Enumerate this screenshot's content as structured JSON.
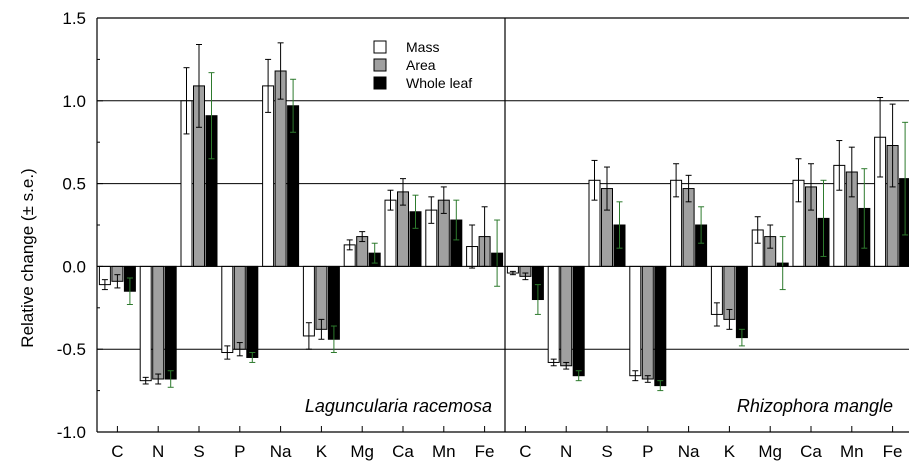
{
  "chart_data": {
    "type": "bar",
    "ylabel": "Relative change (± s.e.)",
    "ylim": [
      -1.0,
      1.5
    ],
    "yticks": [
      "-1.0",
      "-0.5",
      "0.0",
      "0.5",
      "1.0",
      "1.5"
    ],
    "ytick_values": [
      -1.0,
      -0.5,
      0.0,
      0.5,
      1.0,
      1.5
    ],
    "reference_lines": [
      -0.5,
      0.5,
      1.0
    ],
    "legend_position": "top-center",
    "legend": [
      {
        "name": "Mass",
        "color": "#ffffff"
      },
      {
        "name": "Area",
        "color": "#a0a0a0"
      },
      {
        "name": "Whole leaf",
        "color": "#000000"
      }
    ],
    "error_bar_colors": {
      "Mass": "#000000",
      "Area": "#000000",
      "Whole leaf": "#2d7a2d"
    },
    "panels": [
      {
        "species": "Laguncularia racemosa",
        "categories": [
          "C",
          "N",
          "S",
          "P",
          "Na",
          "K",
          "Mg",
          "Ca",
          "Mn",
          "Fe"
        ],
        "series": [
          {
            "name": "Mass",
            "values": [
              -0.11,
              -0.69,
              1.0,
              -0.52,
              1.09,
              -0.42,
              0.13,
              0.4,
              0.34,
              0.12
            ],
            "errors": [
              0.03,
              0.02,
              0.2,
              0.04,
              0.16,
              0.08,
              0.03,
              0.06,
              0.08,
              0.13
            ]
          },
          {
            "name": "Area",
            "values": [
              -0.09,
              -0.68,
              1.09,
              -0.5,
              1.18,
              -0.38,
              0.18,
              0.45,
              0.4,
              0.18
            ],
            "errors": [
              0.04,
              0.03,
              0.25,
              0.04,
              0.17,
              0.06,
              0.03,
              0.08,
              0.08,
              0.18
            ]
          },
          {
            "name": "Whole leaf",
            "values": [
              -0.15,
              -0.68,
              0.91,
              -0.55,
              0.97,
              -0.44,
              0.08,
              0.33,
              0.28,
              0.08
            ],
            "errors": [
              0.08,
              0.05,
              0.26,
              0.03,
              0.16,
              0.08,
              0.06,
              0.1,
              0.12,
              0.2
            ]
          }
        ]
      },
      {
        "species": "Rhizophora mangle",
        "categories": [
          "C",
          "N",
          "S",
          "P",
          "Na",
          "K",
          "Mg",
          "Ca",
          "Mn",
          "Fe"
        ],
        "series": [
          {
            "name": "Mass",
            "values": [
              -0.04,
              -0.58,
              0.52,
              -0.66,
              0.52,
              -0.29,
              0.22,
              0.52,
              0.61,
              0.78
            ],
            "errors": [
              0.01,
              0.02,
              0.12,
              0.03,
              0.1,
              0.07,
              0.08,
              0.13,
              0.15,
              0.24
            ]
          },
          {
            "name": "Area",
            "values": [
              -0.06,
              -0.6,
              0.47,
              -0.68,
              0.47,
              -0.32,
              0.18,
              0.48,
              0.57,
              0.73
            ],
            "errors": [
              0.02,
              0.02,
              0.13,
              0.02,
              0.08,
              0.06,
              0.07,
              0.14,
              0.15,
              0.25
            ]
          },
          {
            "name": "Whole leaf",
            "values": [
              -0.2,
              -0.66,
              0.25,
              -0.72,
              0.25,
              -0.43,
              0.02,
              0.29,
              0.35,
              0.53
            ],
            "errors": [
              0.09,
              0.03,
              0.14,
              0.03,
              0.11,
              0.05,
              0.16,
              0.23,
              0.24,
              0.34
            ]
          }
        ]
      }
    ]
  }
}
